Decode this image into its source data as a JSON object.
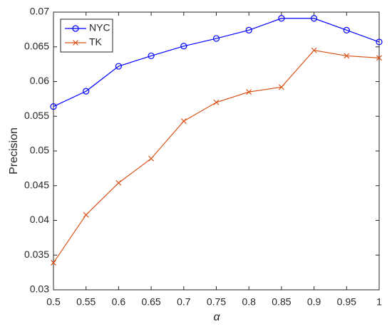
{
  "chart_data": {
    "type": "line",
    "x_label": "α",
    "y_label": "Precision",
    "x": [
      0.5,
      0.55,
      0.6,
      0.65,
      0.7,
      0.75,
      0.8,
      0.85,
      0.9,
      0.95,
      1
    ],
    "series": [
      {
        "name": "NYC",
        "color": "#0000ff",
        "marker": "circle",
        "values": [
          0.0564,
          0.0586,
          0.0622,
          0.0637,
          0.0651,
          0.0662,
          0.0674,
          0.0691,
          0.0691,
          0.0674,
          0.0657
        ]
      },
      {
        "name": "TK",
        "color": "#d95319",
        "marker": "x",
        "values": [
          0.0339,
          0.0408,
          0.0454,
          0.0489,
          0.0543,
          0.057,
          0.0585,
          0.0592,
          0.0645,
          0.0637,
          0.0634
        ]
      }
    ],
    "xlim": [
      0.5,
      1
    ],
    "xticks": [
      0.5,
      0.55,
      0.6,
      0.65,
      0.7,
      0.75,
      0.8,
      0.85,
      0.9,
      0.95,
      1
    ],
    "ylim": [
      0.03,
      0.07
    ],
    "yticks": [
      0.03,
      0.035,
      0.04,
      0.045,
      0.05,
      0.055,
      0.06,
      0.065,
      0.07
    ],
    "grid": false,
    "legend_position": "upper-left"
  }
}
